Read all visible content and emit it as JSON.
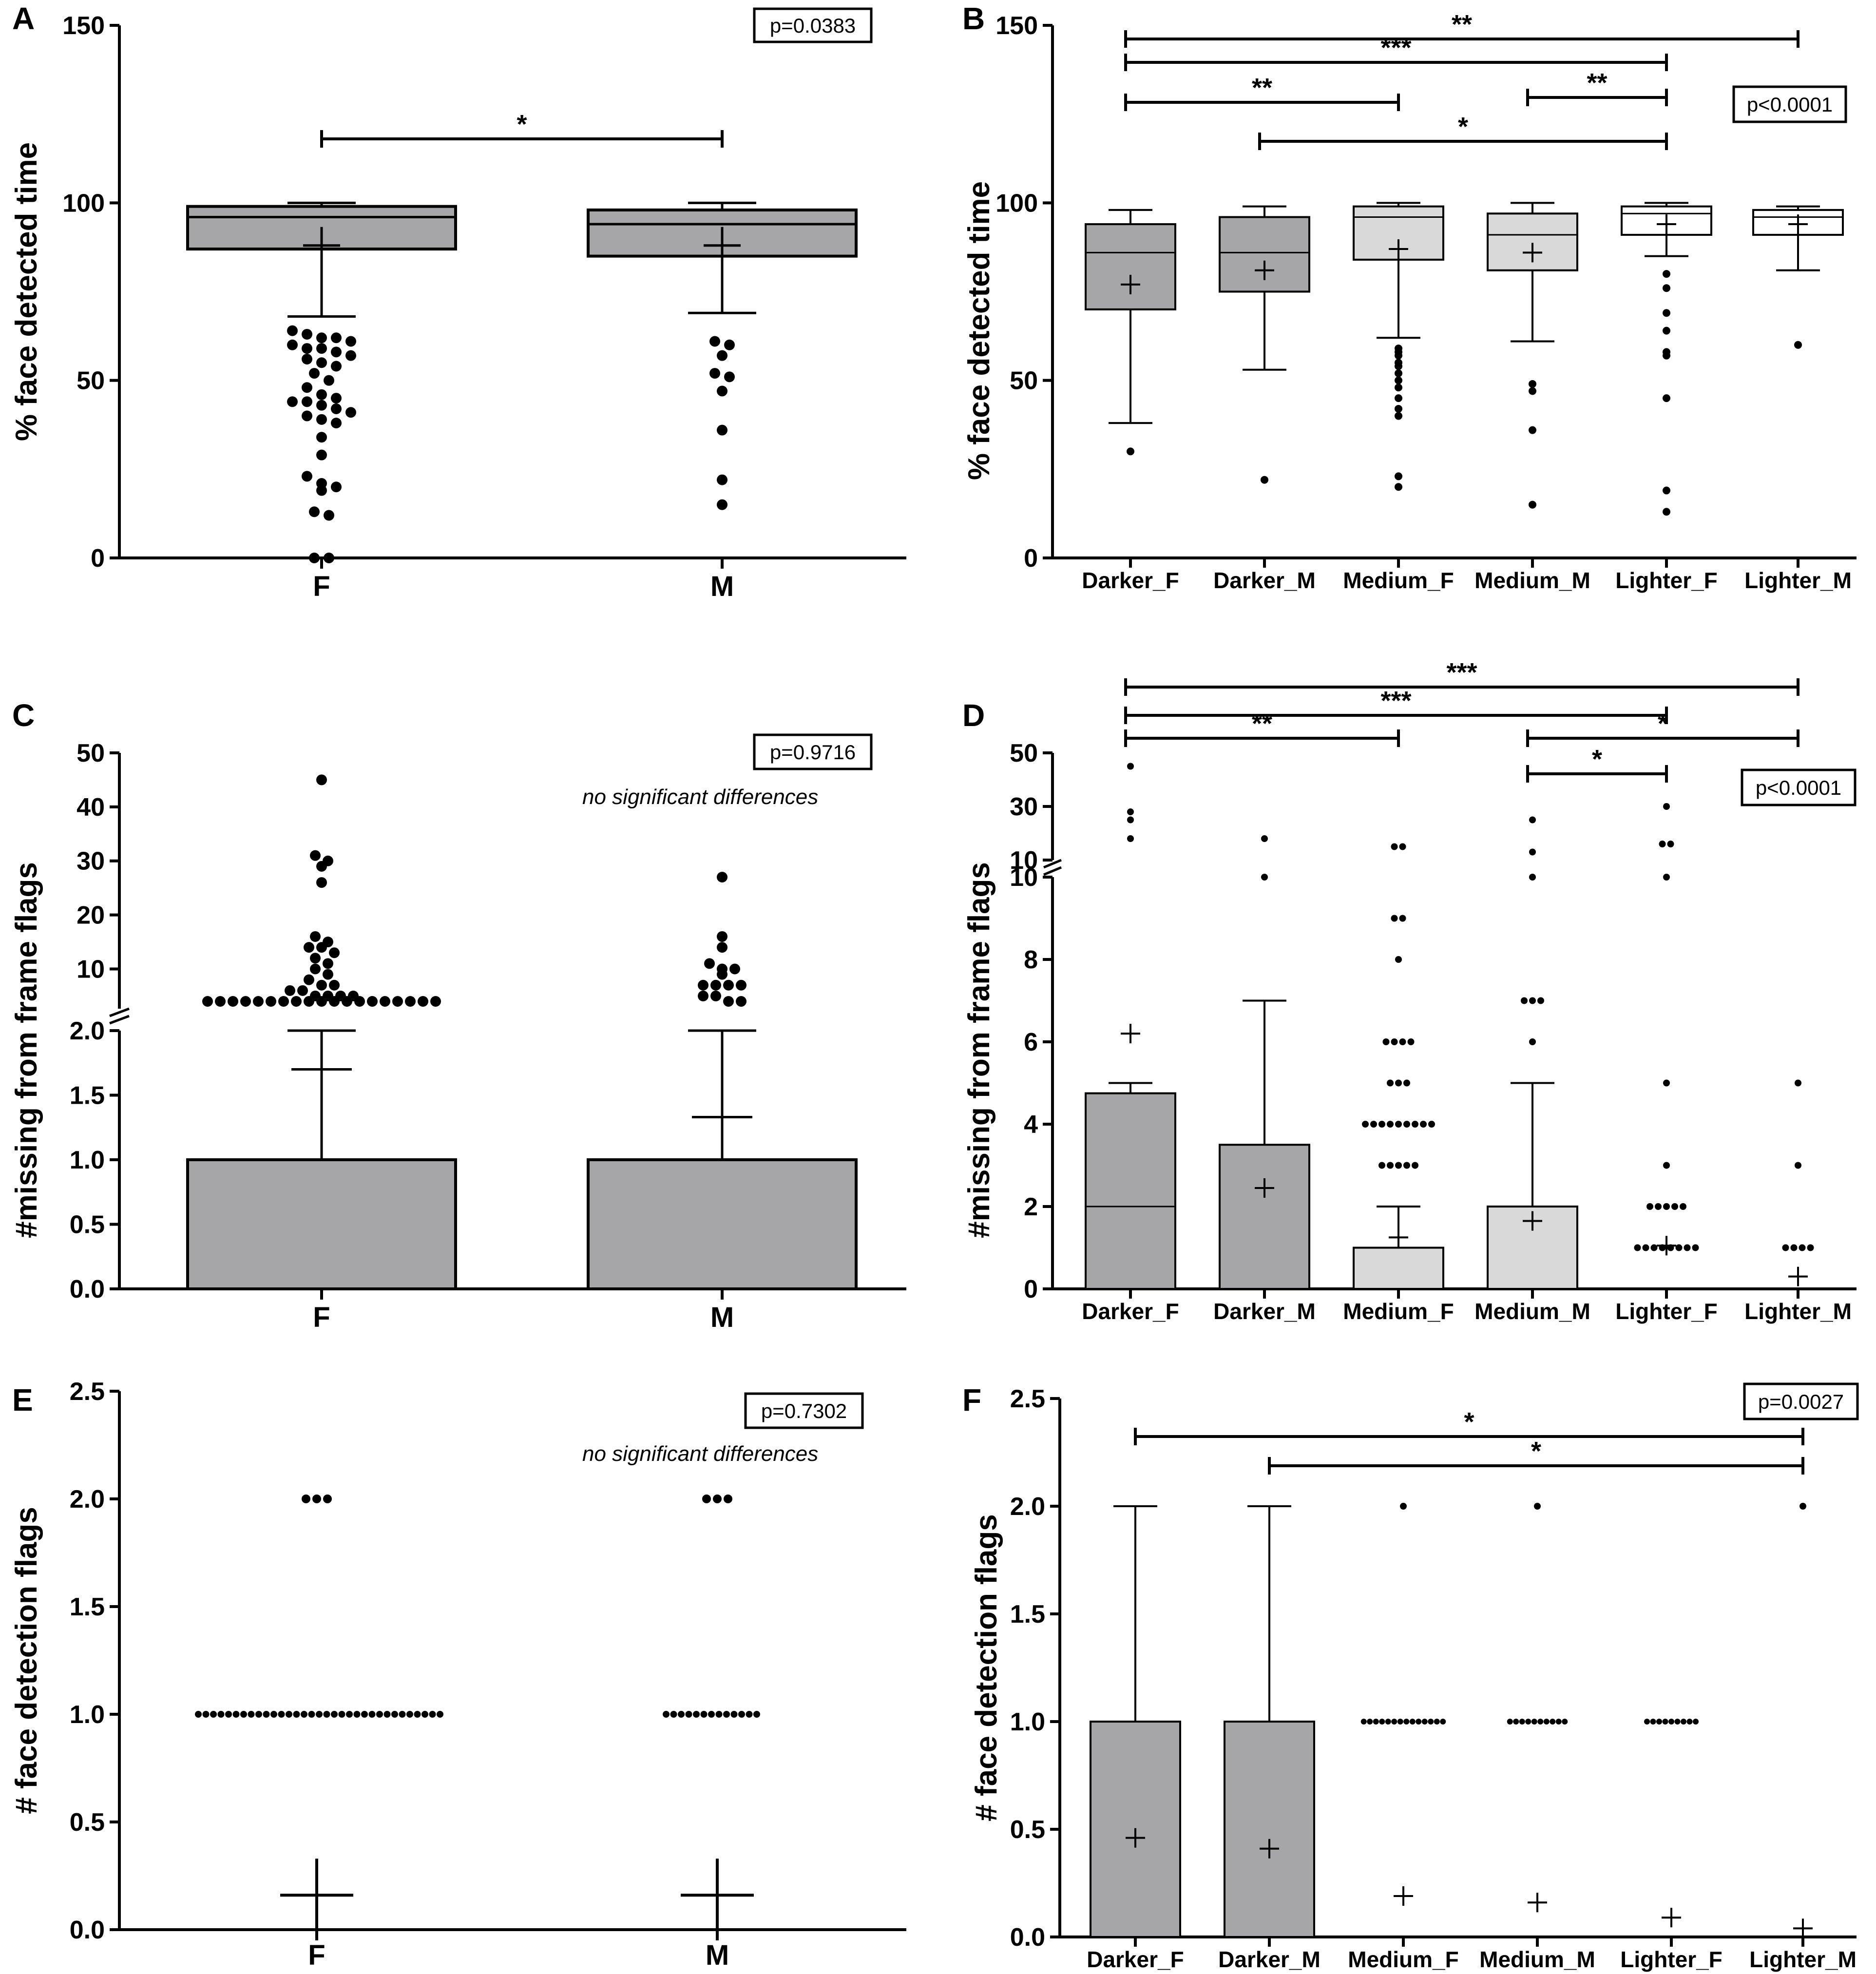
{
  "colors": {
    "dark": "#a6a6a8",
    "light": "#d9d9d9",
    "white": "#ffffff",
    "ink": "#000000"
  },
  "chart_data": [
    {
      "id": "A",
      "panel_label": "A",
      "type": "box",
      "ylabel": "% face detected time",
      "ylim": [
        0,
        150
      ],
      "yticks": [
        "0",
        "50",
        "100",
        "150"
      ],
      "categories": [
        "F",
        "M"
      ],
      "p_value": "p=0.0383",
      "note": "",
      "boxes": [
        {
          "category": "F",
          "q1": 87,
          "median": 96,
          "q3": 99,
          "whisker_low": 68,
          "whisker_high": 100,
          "mean": 88,
          "fill": "dark",
          "outliers": [
            64,
            63,
            62,
            62,
            61,
            60,
            59,
            59,
            58,
            57,
            56,
            55,
            54,
            52,
            50,
            48,
            46,
            45,
            44,
            44,
            43,
            42,
            41,
            40,
            39,
            38,
            34,
            29,
            23,
            21,
            20,
            19,
            13,
            12,
            0,
            0
          ]
        },
        {
          "category": "M",
          "q1": 85,
          "median": 94,
          "q3": 98,
          "whisker_low": 69,
          "whisker_high": 100,
          "mean": 88,
          "fill": "dark",
          "outliers": [
            61,
            60,
            57,
            52,
            51,
            47,
            36,
            22,
            15
          ]
        }
      ],
      "brackets": [
        {
          "from": 0,
          "to": 1,
          "stars": "*"
        }
      ]
    },
    {
      "id": "B",
      "panel_label": "B",
      "type": "box",
      "ylabel": "% face detected time",
      "ylim": [
        0,
        150
      ],
      "yticks": [
        "0",
        "50",
        "100",
        "150"
      ],
      "categories": [
        "Darker_F",
        "Darker_M",
        "Medium_F",
        "Medium_M",
        "Lighter_F",
        "Lighter_M"
      ],
      "p_value": "p<0.0001",
      "note": "",
      "boxes": [
        {
          "category": "Darker_F",
          "q1": 70,
          "median": 86,
          "q3": 94,
          "whisker_low": 38,
          "whisker_high": 98,
          "mean": 77,
          "fill": "dark",
          "outliers": [
            30
          ]
        },
        {
          "category": "Darker_M",
          "q1": 75,
          "median": 86,
          "q3": 96,
          "whisker_low": 53,
          "whisker_high": 99,
          "mean": 81,
          "fill": "dark",
          "outliers": [
            22
          ]
        },
        {
          "category": "Medium_F",
          "q1": 84,
          "median": 96,
          "q3": 99,
          "whisker_low": 62,
          "whisker_high": 100,
          "mean": 87,
          "fill": "light",
          "outliers": [
            59,
            58,
            57,
            55,
            54,
            52,
            50,
            48,
            45,
            42,
            40,
            23,
            20
          ]
        },
        {
          "category": "Medium_M",
          "q1": 81,
          "median": 91,
          "q3": 97,
          "whisker_low": 61,
          "whisker_high": 100,
          "mean": 86,
          "fill": "light",
          "outliers": [
            49,
            47,
            36,
            15
          ]
        },
        {
          "category": "Lighter_F",
          "q1": 91,
          "median": 97,
          "q3": 99,
          "whisker_low": 85,
          "whisker_high": 100,
          "mean": 94,
          "fill": "white",
          "outliers": [
            80,
            76,
            69,
            64,
            58,
            57,
            45,
            19,
            13
          ]
        },
        {
          "category": "Lighter_M",
          "q1": 91,
          "median": 96,
          "q3": 98,
          "whisker_low": 81,
          "whisker_high": 99,
          "mean": 94,
          "fill": "white",
          "outliers": [
            60
          ]
        }
      ],
      "brackets": [
        {
          "from": 0,
          "to": 5,
          "stars": "**"
        },
        {
          "from": 0,
          "to": 4,
          "stars": "***"
        },
        {
          "from": 0,
          "to": 2,
          "stars": "**"
        },
        {
          "from": 3,
          "to": 4,
          "stars": "**"
        },
        {
          "from": 1,
          "to": 4,
          "stars": "*"
        }
      ]
    },
    {
      "id": "C",
      "panel_label": "C",
      "type": "bar",
      "ylabel": "#missing from frame flags",
      "yticks_lower": [
        "0.0",
        "0.5",
        "1.0",
        "1.5",
        "2.0"
      ],
      "yticks_upper": [
        "10",
        "20",
        "30",
        "40",
        "50"
      ],
      "categories": [
        "F",
        "M"
      ],
      "p_value": "p=0.9716",
      "note": "no significant differences",
      "bars": [
        {
          "category": "F",
          "value": 1.0,
          "error_high": 2.0,
          "mean": 1.7,
          "fill": "dark",
          "points": [
            45,
            31,
            30,
            29,
            26,
            16,
            15,
            14,
            14,
            13,
            12,
            11,
            10,
            9,
            8,
            7,
            7,
            6,
            6,
            5,
            5,
            5,
            5,
            4,
            4,
            4,
            4,
            4,
            4,
            4,
            4,
            4,
            4,
            4,
            4,
            4,
            4,
            4,
            4,
            4,
            4,
            4
          ]
        },
        {
          "category": "M",
          "value": 1.0,
          "error_high": 2.0,
          "mean": 1.33,
          "fill": "dark",
          "points": [
            27,
            16,
            14,
            11,
            10,
            10,
            9,
            7,
            7,
            7,
            7,
            5,
            5,
            4,
            4
          ]
        }
      ]
    },
    {
      "id": "D",
      "panel_label": "D",
      "type": "box",
      "ylabel": "#missing from frame flags",
      "yticks_lower": [
        "0",
        "2",
        "4",
        "6",
        "8",
        "10"
      ],
      "yticks_upper": [
        "10",
        "30",
        "50"
      ],
      "categories": [
        "Darker_F",
        "Darker_M",
        "Medium_F",
        "Medium_M",
        "Lighter_F",
        "Lighter_M"
      ],
      "p_value": "p<0.0001",
      "note": "",
      "boxes": [
        {
          "category": "Darker_F",
          "q1": 0,
          "median": 2,
          "q3": 4.75,
          "whisker_high": 5,
          "mean": 6.2,
          "fill": "dark",
          "outliers": [
            45,
            28,
            25,
            18
          ]
        },
        {
          "category": "Darker_M",
          "q1": 0,
          "median": 0,
          "q3": 3.5,
          "whisker_high": 7,
          "mean": 2.45,
          "fill": "dark",
          "outliers": [
            18,
            10
          ]
        },
        {
          "category": "Medium_F",
          "q1": 0,
          "median": 0,
          "q3": 1,
          "whisker_high": 2,
          "mean": 1.25,
          "fill": "light",
          "outliers": [
            15,
            15,
            9,
            9,
            8,
            6,
            6,
            6,
            6,
            5,
            5,
            5,
            4,
            4,
            4,
            4,
            4,
            4,
            4,
            4,
            4,
            3,
            3,
            3,
            3,
            3
          ]
        },
        {
          "category": "Medium_M",
          "q1": 0,
          "median": 0,
          "q3": 2,
          "whisker_high": 5,
          "mean": 1.65,
          "fill": "light",
          "outliers": [
            25,
            13,
            10,
            7,
            7,
            7,
            6
          ]
        },
        {
          "category": "Lighter_F",
          "q1": 0,
          "median": 0,
          "q3": 0,
          "whisker_high": 0,
          "mean": 1.05,
          "fill": "white",
          "outliers": [
            30,
            16,
            16,
            10,
            5,
            3,
            2,
            2,
            2,
            2,
            2,
            1,
            1,
            1,
            1,
            1,
            1,
            1,
            1
          ]
        },
        {
          "category": "Lighter_M",
          "q1": 0,
          "median": 0,
          "q3": 0,
          "whisker_high": 0,
          "mean": 0.3,
          "fill": "white",
          "outliers": [
            5,
            3,
            1,
            1,
            1,
            1
          ]
        }
      ],
      "brackets": [
        {
          "from": 0,
          "to": 5,
          "stars": "***"
        },
        {
          "from": 0,
          "to": 4,
          "stars": "***"
        },
        {
          "from": 0,
          "to": 2,
          "stars": "**"
        },
        {
          "from": 3,
          "to": 5,
          "stars": "*"
        },
        {
          "from": 3,
          "to": 4,
          "stars": "*"
        }
      ]
    },
    {
      "id": "E",
      "panel_label": "E",
      "type": "scatter",
      "ylabel": "# face detection flags",
      "ylim": [
        0,
        2.5
      ],
      "yticks": [
        "0.0",
        "0.5",
        "1.0",
        "1.5",
        "2.0",
        "2.5"
      ],
      "categories": [
        "F",
        "M"
      ],
      "p_value": "p=0.7302",
      "note": "no significant differences",
      "groups": [
        {
          "category": "F",
          "mean": 0.16,
          "points": {
            "2": 3,
            "1": 33
          }
        },
        {
          "category": "M",
          "mean": 0.16,
          "points": {
            "2": 3,
            "1": 13
          }
        }
      ]
    },
    {
      "id": "F",
      "panel_label": "F",
      "type": "bar",
      "ylabel": "# face detection flags",
      "ylim": [
        0,
        2.5
      ],
      "yticks": [
        "0.0",
        "0.5",
        "1.0",
        "1.5",
        "2.0",
        "2.5"
      ],
      "categories": [
        "Darker_F",
        "Darker_M",
        "Medium_F",
        "Medium_M",
        "Lighter_F",
        "Lighter_M"
      ],
      "p_value": "p=0.0027",
      "note": "",
      "bars": [
        {
          "category": "Darker_F",
          "value": 1.0,
          "error_high": 2.0,
          "mean": 0.46,
          "fill": "dark",
          "dots1": 0,
          "dots2": 0
        },
        {
          "category": "Darker_M",
          "value": 1.0,
          "error_high": 2.0,
          "mean": 0.41,
          "fill": "dark",
          "dots1": 0,
          "dots2": 0
        },
        {
          "category": "Medium_F",
          "value": 0,
          "error_high": 0,
          "mean": 0.19,
          "fill": "light",
          "dots1": 14,
          "dots2": 1
        },
        {
          "category": "Medium_M",
          "value": 0,
          "error_high": 0,
          "mean": 0.16,
          "fill": "light",
          "dots1": 10,
          "dots2": 1
        },
        {
          "category": "Lighter_F",
          "value": 0,
          "error_high": 0,
          "mean": 0.09,
          "fill": "white",
          "dots1": 9,
          "dots2": 0
        },
        {
          "category": "Lighter_M",
          "value": 0,
          "error_high": 0,
          "mean": 0.04,
          "fill": "white",
          "dots1": 0,
          "dots2": 1
        }
      ],
      "brackets": [
        {
          "from": 0,
          "to": 5,
          "stars": "*"
        },
        {
          "from": 1,
          "to": 5,
          "stars": "*"
        }
      ]
    }
  ]
}
